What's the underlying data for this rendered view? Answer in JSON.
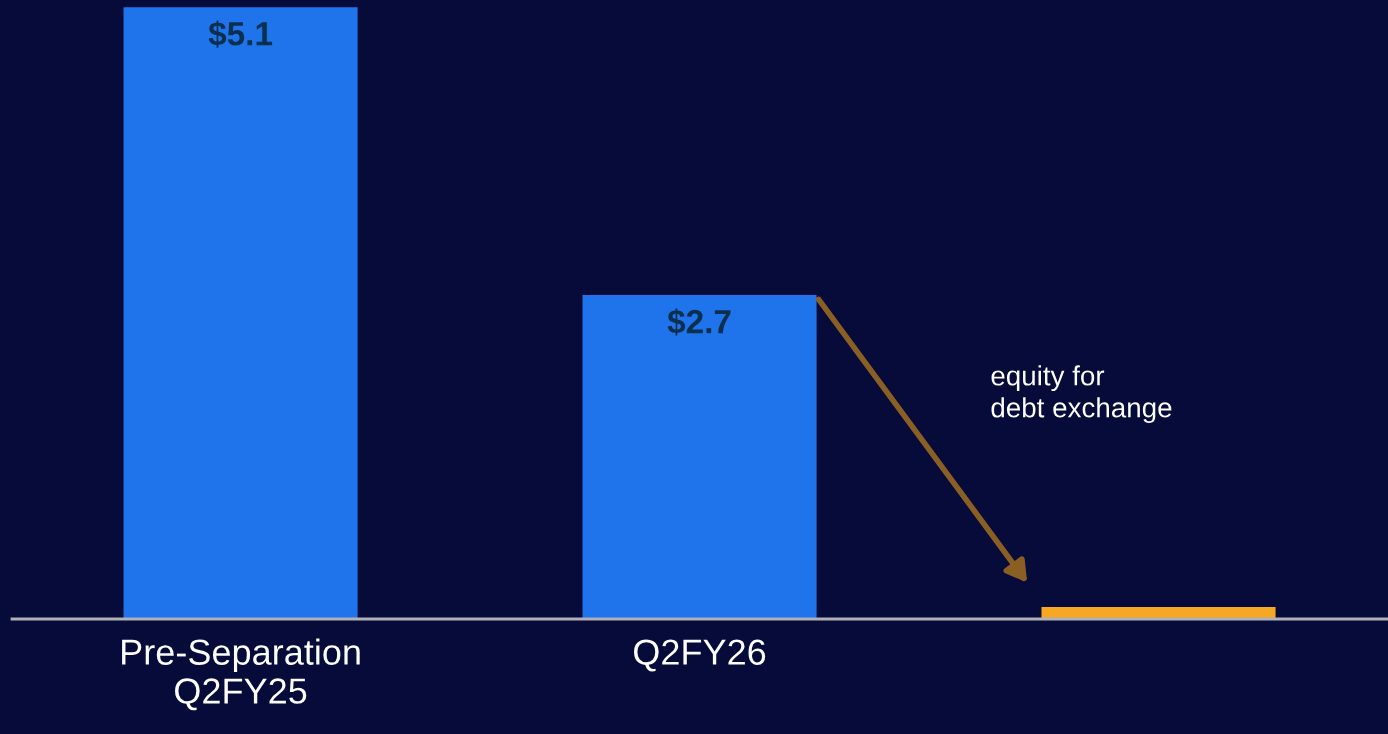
{
  "chart_data": {
    "type": "bar",
    "ylim": [
      0,
      5.16
    ],
    "categories": [
      "Pre-Separation\nQ2FY25",
      "Q2FY26",
      null
    ],
    "values": [
      5.1,
      2.7,
      0.1
    ],
    "colors": [
      "#1f74ec",
      "#1f74ec",
      "#f7a823"
    ],
    "value_labels": [
      "$5.1",
      "$2.7",
      null
    ],
    "annotations": [
      "equity for\ndebt exchange"
    ],
    "grid": false,
    "legend": false
  }
}
